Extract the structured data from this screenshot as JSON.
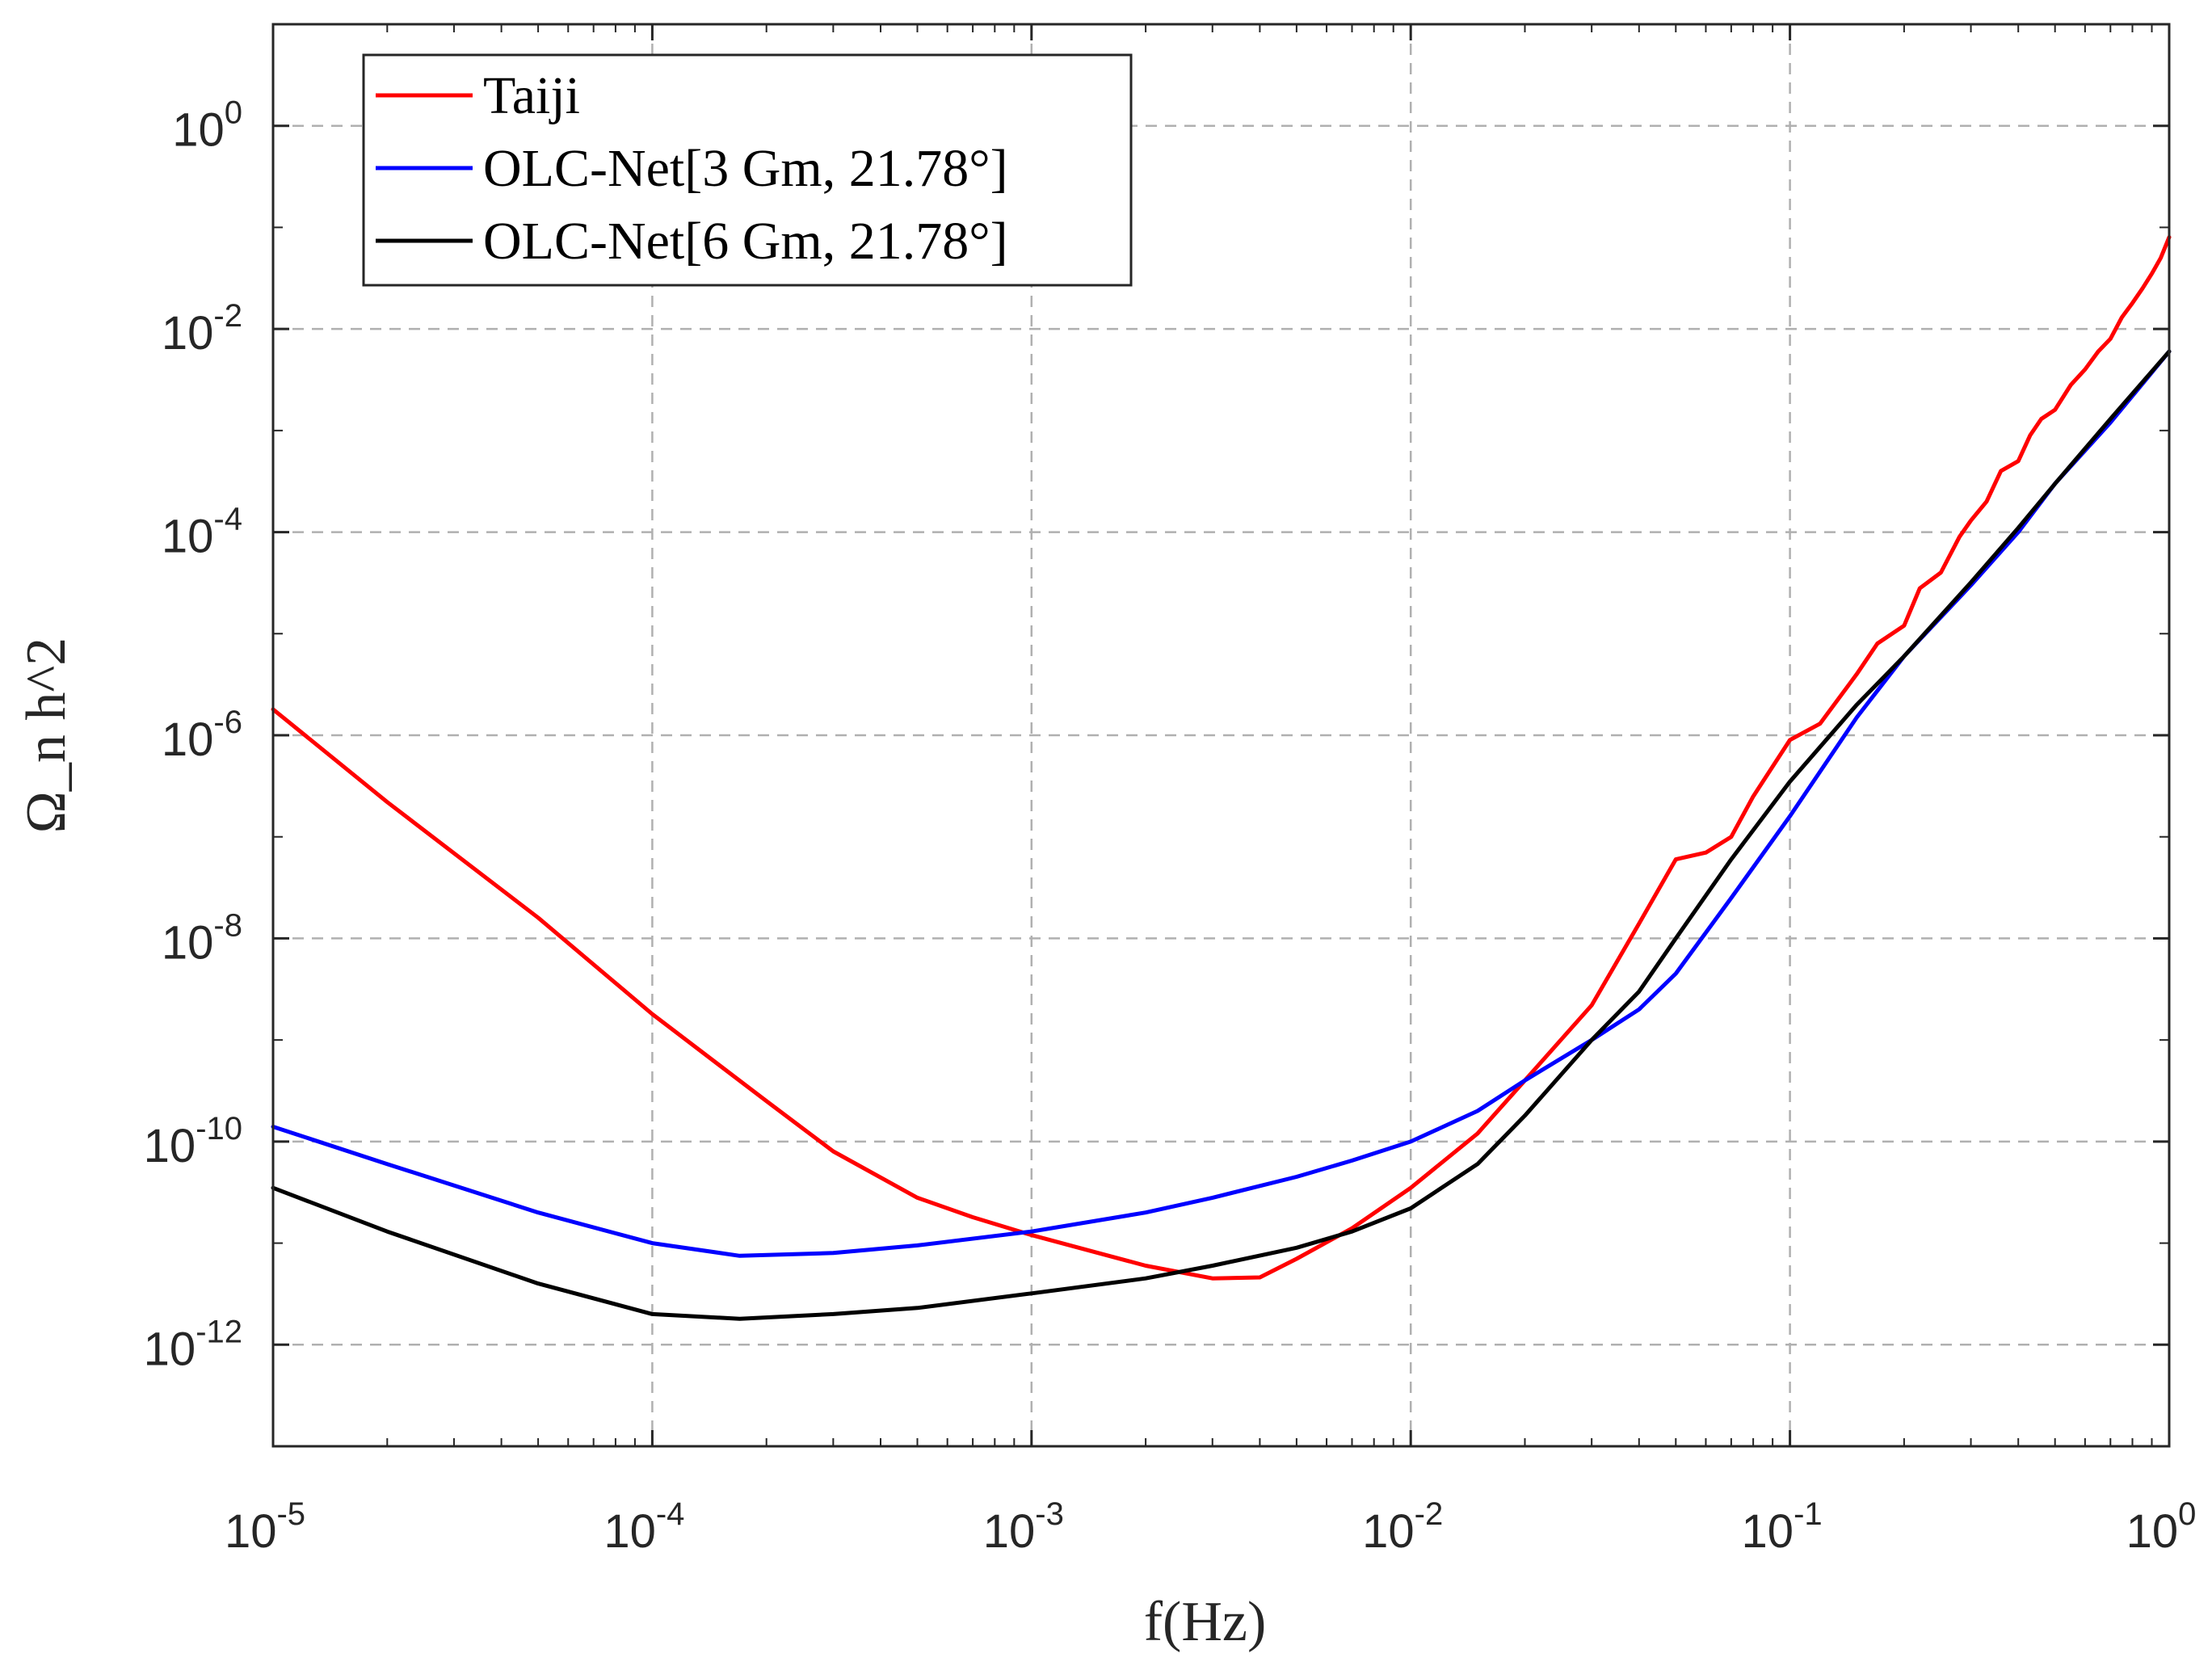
{
  "chart_data": {
    "type": "line",
    "xscale": "log",
    "yscale": "log",
    "xlim": [
      1e-05,
      1
    ],
    "ylim": [
      1e-13,
      10
    ],
    "grid": true,
    "legend_position": "top-left",
    "xlabel": "f(Hz)",
    "ylabel": "Ω_n h^2",
    "x_ticks": [
      {
        "value": 1e-05,
        "base": "10",
        "exp": "-5"
      },
      {
        "value": 0.0001,
        "base": "10",
        "exp": "-4"
      },
      {
        "value": 0.001,
        "base": "10",
        "exp": "-3"
      },
      {
        "value": 0.01,
        "base": "10",
        "exp": "-2"
      },
      {
        "value": 0.1,
        "base": "10",
        "exp": "-1"
      },
      {
        "value": 1,
        "base": "10",
        "exp": "0"
      }
    ],
    "y_ticks": [
      {
        "value": 1,
        "base": "10",
        "exp": "0"
      },
      {
        "value": 0.01,
        "base": "10",
        "exp": "-2"
      },
      {
        "value": 0.0001,
        "base": "10",
        "exp": "-4"
      },
      {
        "value": 1e-06,
        "base": "10",
        "exp": "-6"
      },
      {
        "value": 1e-08,
        "base": "10",
        "exp": "-8"
      },
      {
        "value": 1e-10,
        "base": "10",
        "exp": "-10"
      },
      {
        "value": 1e-12,
        "base": "10",
        "exp": "-12"
      }
    ],
    "series": [
      {
        "name": "Taiji",
        "color": "#ff0000",
        "x": [
          1e-05,
          2e-05,
          5e-05,
          0.0001,
          0.0002,
          0.0003,
          0.0005,
          0.0007,
          0.001,
          0.0015,
          0.002,
          0.003,
          0.004,
          0.005,
          0.007,
          0.01,
          0.015,
          0.02,
          0.03,
          0.04,
          0.05,
          0.06,
          0.07,
          0.08,
          0.1,
          0.12,
          0.15,
          0.17,
          0.2,
          0.22,
          0.25,
          0.28,
          0.3,
          0.33,
          0.36,
          0.4,
          0.43,
          0.46,
          0.5,
          0.55,
          0.6,
          0.65,
          0.7,
          0.75,
          0.8,
          0.85,
          0.9,
          0.95,
          1.0
        ],
        "y": [
          1.8e-06,
          2.2e-07,
          1.6e-08,
          1.8e-09,
          2.5e-10,
          8e-11,
          2.8e-11,
          1.8e-11,
          1.2e-11,
          8e-12,
          6e-12,
          4.5e-12,
          4.6e-12,
          7e-12,
          1.4e-11,
          3.5e-11,
          1.2e-10,
          4e-10,
          2.2e-09,
          1.4e-08,
          6e-08,
          7e-08,
          1e-07,
          2.5e-07,
          9e-07,
          1.3e-06,
          4e-06,
          8e-06,
          1.2e-05,
          2.8e-05,
          4e-05,
          9e-05,
          0.00013,
          0.0002,
          0.0004,
          0.0005,
          0.0009,
          0.0013,
          0.0016,
          0.0028,
          0.004,
          0.006,
          0.008,
          0.013,
          0.018,
          0.025,
          0.035,
          0.05,
          0.08
        ]
      },
      {
        "name": "OLC-Net[3 Gm,  21.78°]",
        "color": "#0000ff",
        "x": [
          1e-05,
          2e-05,
          5e-05,
          0.0001,
          0.00017,
          0.0003,
          0.0005,
          0.001,
          0.002,
          0.003,
          0.005,
          0.007,
          0.01,
          0.015,
          0.02,
          0.03,
          0.04,
          0.05,
          0.07,
          0.1,
          0.15,
          0.2,
          0.3,
          0.4,
          0.5,
          0.7,
          1.0
        ],
        "y": [
          1.4e-10,
          6e-11,
          2e-11,
          1e-11,
          7.5e-12,
          8e-12,
          9.5e-12,
          1.3e-11,
          2e-11,
          2.8e-11,
          4.5e-11,
          6.5e-11,
          1e-10,
          2e-10,
          4e-10,
          1e-09,
          2e-09,
          4.5e-09,
          2.5e-08,
          1.6e-07,
          1.5e-06,
          6e-06,
          3e-05,
          0.0001,
          0.0003,
          0.0012,
          0.006
        ]
      },
      {
        "name": "OLC-Net[6 Gm,  21.78°]",
        "color": "#000000",
        "x": [
          1e-05,
          2e-05,
          5e-05,
          0.0001,
          0.00017,
          0.0003,
          0.0005,
          0.001,
          0.002,
          0.003,
          0.005,
          0.007,
          0.01,
          0.015,
          0.02,
          0.03,
          0.04,
          0.05,
          0.07,
          0.1,
          0.15,
          0.2,
          0.3,
          0.4,
          0.5,
          0.7,
          1.0
        ],
        "y": [
          3.5e-11,
          1.3e-11,
          4e-12,
          2e-12,
          1.8e-12,
          2e-12,
          2.3e-12,
          3.2e-12,
          4.5e-12,
          6e-12,
          9e-12,
          1.3e-11,
          2.2e-11,
          6e-11,
          1.8e-10,
          1e-09,
          3e-09,
          1e-08,
          6e-08,
          3.5e-07,
          2e-06,
          6e-06,
          3.2e-05,
          0.00011,
          0.0003,
          0.0013,
          0.006
        ]
      }
    ]
  }
}
